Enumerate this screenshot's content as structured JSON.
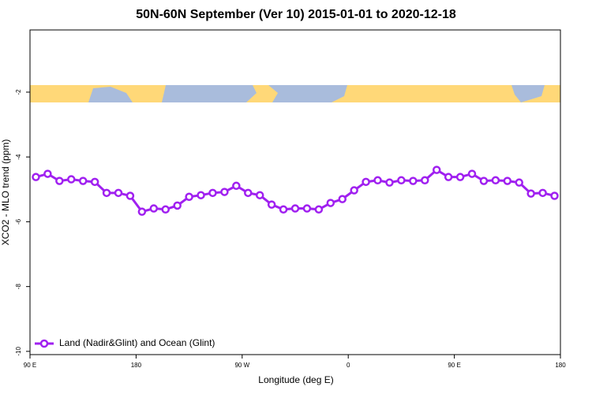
{
  "chart_data": {
    "type": "line",
    "title": "50N-60N September (Ver 10)   2015-01-01 to 2020-12-18",
    "x_label": "Longitude (deg E)",
    "y_label": "XCO2 - MLO trend (ppm)",
    "x": [
      95,
      105,
      115,
      125,
      135,
      145,
      155,
      165,
      175,
      185,
      195,
      205,
      215,
      225,
      235,
      245,
      255,
      265,
      275,
      285,
      295,
      305,
      315,
      325,
      335,
      345,
      355,
      365,
      375,
      385,
      395,
      405,
      415,
      425,
      435,
      445,
      455,
      465,
      475,
      485,
      495,
      505,
      515,
      525,
      535
    ],
    "series": [
      {
        "name": "Land (Nadir&Glint) and Ocean (Glint)",
        "color": "#a020f0",
        "values": [
          -4.62,
          -4.52,
          -4.74,
          -4.69,
          -4.74,
          -4.77,
          -5.11,
          -5.11,
          -5.2,
          -5.69,
          -5.59,
          -5.62,
          -5.5,
          -5.23,
          -5.18,
          -5.11,
          -5.08,
          -4.89,
          -5.11,
          -5.18,
          -5.47,
          -5.62,
          -5.59,
          -5.59,
          -5.62,
          -5.42,
          -5.3,
          -5.03,
          -4.77,
          -4.72,
          -4.79,
          -4.72,
          -4.74,
          -4.72,
          -4.4,
          -4.62,
          -4.62,
          -4.52,
          -4.74,
          -4.72,
          -4.74,
          -4.79,
          -5.13,
          -5.11,
          -5.2
        ]
      }
    ],
    "xlim": [
      90,
      540
    ],
    "xticks": [
      {
        "value": 90,
        "label": "90 E"
      },
      {
        "value": 180,
        "label": "180"
      },
      {
        "value": 270,
        "label": "90 W"
      },
      {
        "value": 360,
        "label": "0"
      },
      {
        "value": 450,
        "label": "90 E"
      },
      {
        "value": 540,
        "label": "180"
      }
    ],
    "ylim": [
      -10.1,
      -0.08
    ],
    "yticks": [
      -2,
      -4,
      -6,
      -8,
      -10
    ],
    "legend": "bottom-left"
  }
}
